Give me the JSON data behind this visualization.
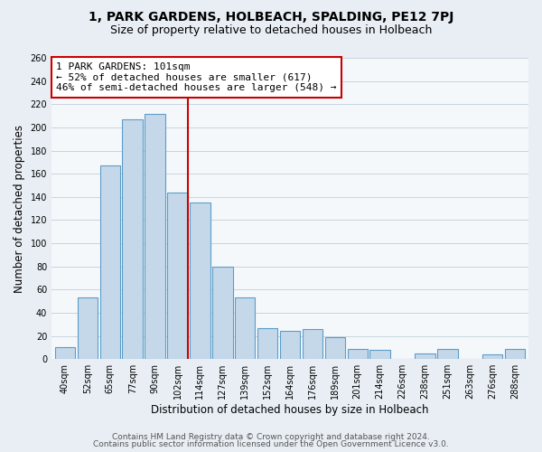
{
  "title": "1, PARK GARDENS, HOLBEACH, SPALDING, PE12 7PJ",
  "subtitle": "Size of property relative to detached houses in Holbeach",
  "xlabel": "Distribution of detached houses by size in Holbeach",
  "ylabel": "Number of detached properties",
  "bar_labels": [
    "40sqm",
    "52sqm",
    "65sqm",
    "77sqm",
    "90sqm",
    "102sqm",
    "114sqm",
    "127sqm",
    "139sqm",
    "152sqm",
    "164sqm",
    "176sqm",
    "189sqm",
    "201sqm",
    "214sqm",
    "226sqm",
    "238sqm",
    "251sqm",
    "263sqm",
    "276sqm",
    "288sqm"
  ],
  "bar_values": [
    10,
    53,
    167,
    207,
    212,
    144,
    135,
    80,
    53,
    27,
    24,
    26,
    19,
    9,
    8,
    0,
    5,
    9,
    0,
    4,
    9
  ],
  "bar_color": "#c5d8ea",
  "bar_edge_color": "#5b9dc9",
  "vline_x_index": 5,
  "vline_color": "#cc0000",
  "annotation_line1": "1 PARK GARDENS: 101sqm",
  "annotation_line2": "← 52% of detached houses are smaller (617)",
  "annotation_line3": "46% of semi-detached houses are larger (548) →",
  "annotation_box_color": "#ffffff",
  "annotation_box_edge_color": "#cc0000",
  "ylim": [
    0,
    260
  ],
  "yticks": [
    0,
    20,
    40,
    60,
    80,
    100,
    120,
    140,
    160,
    180,
    200,
    220,
    240,
    260
  ],
  "footer_line1": "Contains HM Land Registry data © Crown copyright and database right 2024.",
  "footer_line2": "Contains public sector information licensed under the Open Government Licence v3.0.",
  "bg_color": "#e8eef4",
  "plot_bg_color": "#f5f8fb",
  "grid_color": "#c8d4de",
  "title_fontsize": 10,
  "subtitle_fontsize": 9,
  "label_fontsize": 8.5,
  "tick_fontsize": 7,
  "annot_fontsize": 8,
  "footer_fontsize": 6.5
}
